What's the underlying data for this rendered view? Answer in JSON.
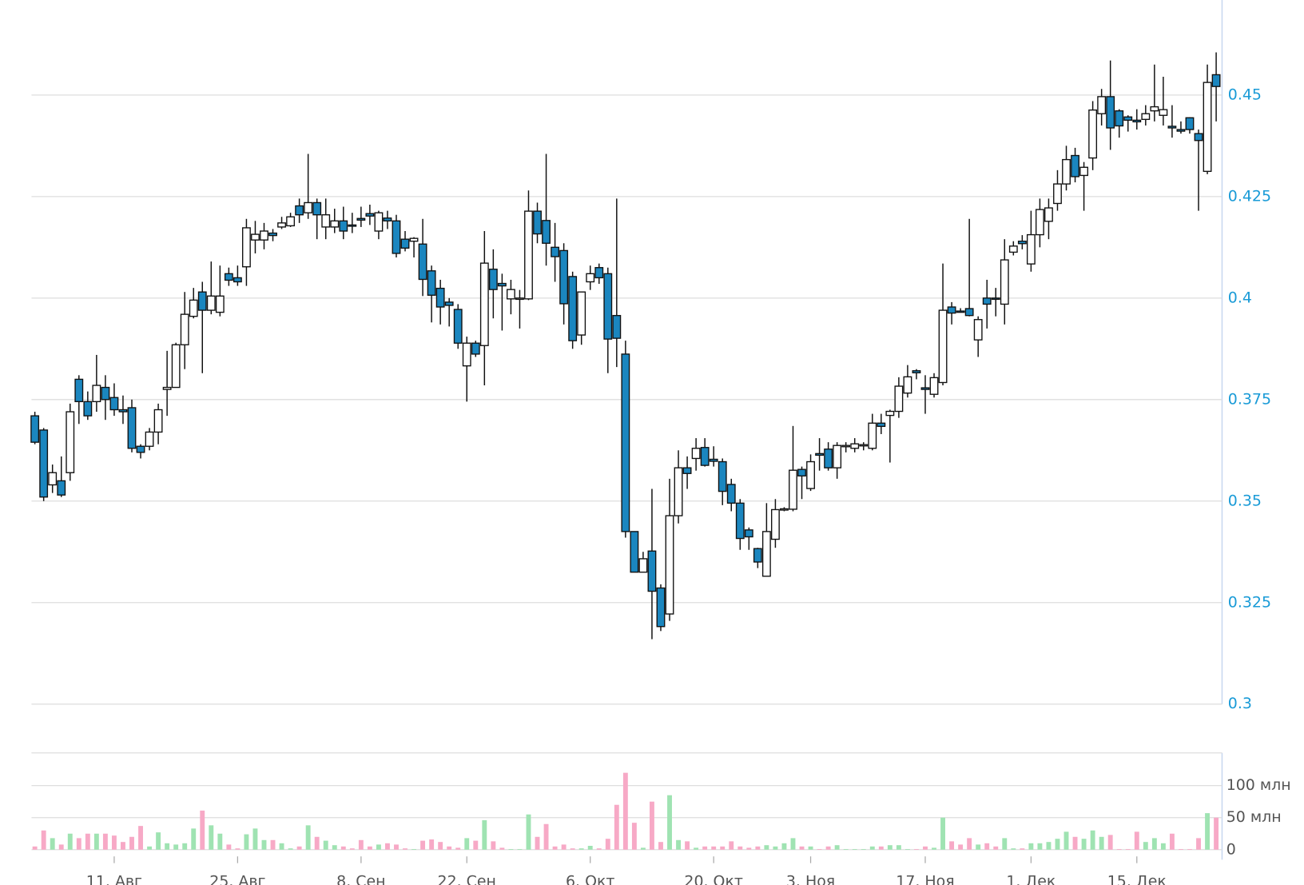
{
  "chart_data": [
    {
      "type": "candlestick",
      "categories": [
        null,
        null,
        null,
        null,
        null,
        null,
        null,
        null,
        null,
        "11. Авг",
        null,
        null,
        null,
        null,
        null,
        null,
        null,
        null,
        null,
        null,
        null,
        null,
        null,
        "25. Авг",
        null,
        null,
        null,
        null,
        null,
        null,
        null,
        null,
        null,
        null,
        null,
        null,
        null,
        "8. Сен",
        null,
        null,
        null,
        null,
        null,
        null,
        null,
        null,
        null,
        null,
        null,
        "22. Сен",
        null,
        null,
        null,
        null,
        null,
        null,
        null,
        null,
        null,
        null,
        null,
        null,
        null,
        "6. Окт",
        null,
        null,
        null,
        null,
        null,
        null,
        null,
        null,
        null,
        null,
        null,
        null,
        null,
        "20. Окт",
        null,
        null,
        null,
        null,
        null,
        null,
        null,
        null,
        null,
        null,
        "3. Ноя",
        null,
        null,
        null,
        null,
        null,
        null,
        null,
        null,
        null,
        null,
        null,
        null,
        "17. Ноя",
        null,
        null,
        null,
        null,
        null,
        null,
        null,
        null,
        null,
        null,
        null,
        "1. Дек",
        null,
        null,
        null,
        null,
        null,
        null,
        null,
        null,
        null,
        null,
        null,
        "15. Дек",
        null,
        null,
        null,
        null,
        null,
        null,
        null,
        null,
        null
      ],
      "open": [
        0.371,
        0.3675,
        0.354,
        0.355,
        0.357,
        0.38,
        0.3745,
        0.3745,
        0.378,
        0.3755,
        0.3725,
        0.373,
        0.3635,
        0.3635,
        0.367,
        0.3775,
        0.378,
        0.3885,
        0.3955,
        0.4015,
        0.397,
        0.3965,
        0.406,
        0.405,
        0.4077,
        0.4143,
        0.4143,
        0.416,
        0.4175,
        0.4178,
        0.4227,
        0.421,
        0.4235,
        0.4175,
        0.4175,
        0.419,
        0.418,
        0.4196,
        0.4208,
        0.4165,
        0.4197,
        0.419,
        0.4145,
        0.414,
        0.4133,
        0.4067,
        0.4024,
        0.399,
        0.3972,
        0.3833,
        0.3889,
        0.3883,
        0.4071,
        0.4036,
        0.3998,
        0.3998,
        0.3998,
        0.4214,
        0.4191,
        0.4125,
        0.4117,
        0.4053,
        0.3909,
        0.404,
        0.4075,
        0.406,
        0.3957,
        0.3862,
        0.3425,
        0.3325,
        0.3377,
        0.3286,
        0.3222,
        0.3464,
        0.3582,
        0.3605,
        0.3632,
        0.3603,
        0.3597,
        0.3541,
        0.3495,
        0.3429,
        0.3383,
        0.3315,
        0.3406,
        0.3479,
        0.348,
        0.3578,
        0.3531,
        0.3617,
        0.3628,
        0.3582,
        0.3636,
        0.363,
        0.3637,
        0.363,
        0.3692,
        0.3711,
        0.3721,
        0.3766,
        0.3821,
        0.3779,
        0.3763,
        0.3792,
        0.3978,
        0.3968,
        0.3974,
        0.3897,
        0.4,
        0.4,
        0.3985,
        0.4113,
        0.414,
        0.4084,
        0.4156,
        0.4189,
        0.4233,
        0.4281,
        0.4351,
        0.4302,
        0.4345,
        0.4454,
        0.4496,
        0.4461,
        0.4446,
        0.4438,
        0.444,
        0.4461,
        0.445,
        0.4423,
        0.4415,
        0.4444,
        0.4405,
        0.4312,
        0.455
      ],
      "high": [
        0.372,
        0.368,
        0.359,
        0.361,
        0.374,
        0.381,
        0.377,
        0.386,
        0.381,
        0.379,
        0.376,
        0.375,
        0.364,
        0.368,
        0.374,
        0.387,
        0.389,
        0.4015,
        0.4025,
        0.404,
        0.409,
        0.408,
        0.4075,
        0.408,
        0.4195,
        0.419,
        0.4185,
        0.417,
        0.42,
        0.421,
        0.4245,
        0.4355,
        0.4245,
        0.4245,
        0.422,
        0.4225,
        0.421,
        0.4225,
        0.423,
        0.4215,
        0.4215,
        0.4205,
        0.4165,
        0.415,
        0.4195,
        0.408,
        0.4045,
        0.4,
        0.3985,
        0.3905,
        0.3895,
        0.4165,
        0.412,
        0.406,
        0.4045,
        0.402,
        0.4265,
        0.4235,
        0.4355,
        0.4185,
        0.4135,
        0.4065,
        0.4015,
        0.408,
        0.4085,
        0.4075,
        0.4245,
        0.3895,
        0.3425,
        0.3375,
        0.353,
        0.3295,
        0.3555,
        0.3625,
        0.361,
        0.3655,
        0.3655,
        0.3635,
        0.3605,
        0.3555,
        0.3505,
        0.3435,
        0.3385,
        0.3495,
        0.3505,
        0.3485,
        0.3685,
        0.3585,
        0.3615,
        0.3655,
        0.3645,
        0.3645,
        0.3645,
        0.3655,
        0.3645,
        0.3715,
        0.3715,
        0.3725,
        0.3805,
        0.3835,
        0.3825,
        0.381,
        0.3815,
        0.4085,
        0.399,
        0.3975,
        0.4195,
        0.3955,
        0.4045,
        0.4025,
        0.4145,
        0.414,
        0.4155,
        0.4215,
        0.4245,
        0.4245,
        0.4315,
        0.4375,
        0.437,
        0.4335,
        0.4485,
        0.4515,
        0.4585,
        0.4465,
        0.445,
        0.4465,
        0.4475,
        0.4575,
        0.4545,
        0.4475,
        0.4435,
        0.4445,
        0.4415,
        0.4575,
        0.4605
      ],
      "low": [
        0.364,
        0.35,
        0.352,
        0.351,
        0.355,
        0.369,
        0.37,
        0.372,
        0.37,
        0.371,
        0.369,
        0.362,
        0.3605,
        0.3625,
        0.364,
        0.371,
        0.378,
        0.3825,
        0.395,
        0.3815,
        0.396,
        0.3955,
        0.403,
        0.403,
        0.403,
        0.411,
        0.412,
        0.414,
        0.417,
        0.4175,
        0.4185,
        0.4195,
        0.4145,
        0.4145,
        0.416,
        0.4145,
        0.416,
        0.4175,
        0.418,
        0.4145,
        0.417,
        0.41,
        0.4115,
        0.41,
        0.4005,
        0.394,
        0.3935,
        0.393,
        0.3875,
        0.3745,
        0.3855,
        0.3785,
        0.395,
        0.392,
        0.396,
        0.3925,
        0.3995,
        0.4135,
        0.408,
        0.404,
        0.3935,
        0.3875,
        0.3885,
        0.402,
        0.4035,
        0.3815,
        0.383,
        0.341,
        0.3325,
        0.3325,
        0.316,
        0.318,
        0.3205,
        0.3445,
        0.353,
        0.3575,
        0.3585,
        0.3585,
        0.349,
        0.3475,
        0.338,
        0.338,
        0.3335,
        0.3315,
        0.3385,
        0.3475,
        0.3475,
        0.3505,
        0.3525,
        0.3575,
        0.3575,
        0.3555,
        0.362,
        0.362,
        0.3625,
        0.3625,
        0.3665,
        0.3595,
        0.3705,
        0.3755,
        0.38,
        0.3715,
        0.3755,
        0.3785,
        0.3935,
        0.3965,
        0.3955,
        0.3855,
        0.3925,
        0.3955,
        0.3935,
        0.4105,
        0.412,
        0.4065,
        0.4125,
        0.4145,
        0.4215,
        0.4265,
        0.4285,
        0.4215,
        0.4315,
        0.4425,
        0.4365,
        0.4395,
        0.441,
        0.4415,
        0.4425,
        0.4435,
        0.4425,
        0.4395,
        0.4405,
        0.4405,
        0.4215,
        0.4305,
        0.4435
      ],
      "close": [
        0.3645,
        0.351,
        0.357,
        0.3515,
        0.372,
        0.3745,
        0.371,
        0.3785,
        0.375,
        0.3725,
        0.372,
        0.363,
        0.362,
        0.367,
        0.3725,
        0.378,
        0.3885,
        0.396,
        0.3995,
        0.397,
        0.4005,
        0.4005,
        0.4044,
        0.404,
        0.4173,
        0.4157,
        0.4165,
        0.4154,
        0.4185,
        0.42,
        0.4205,
        0.4235,
        0.4205,
        0.4205,
        0.419,
        0.4165,
        0.4178,
        0.4192,
        0.4202,
        0.421,
        0.419,
        0.411,
        0.4123,
        0.4147,
        0.4046,
        0.4007,
        0.3978,
        0.3982,
        0.3889,
        0.3889,
        0.3862,
        0.4086,
        0.4021,
        0.403,
        0.4021,
        0.4,
        0.4214,
        0.4158,
        0.4135,
        0.4102,
        0.3986,
        0.3895,
        0.4015,
        0.406,
        0.405,
        0.3899,
        0.3901,
        0.3425,
        0.3325,
        0.3358,
        0.3278,
        0.3191,
        0.3464,
        0.3582,
        0.3568,
        0.363,
        0.3588,
        0.3598,
        0.3524,
        0.3495,
        0.3408,
        0.3412,
        0.335,
        0.3425,
        0.3479,
        0.3481,
        0.3576,
        0.3562,
        0.3597,
        0.3613,
        0.3582,
        0.3637,
        0.3637,
        0.3641,
        0.3639,
        0.3692,
        0.3684,
        0.3721,
        0.3783,
        0.3806,
        0.3816,
        0.3775,
        0.3804,
        0.397,
        0.3963,
        0.3967,
        0.3957,
        0.3947,
        0.3985,
        0.3998,
        0.4094,
        0.4128,
        0.4134,
        0.4156,
        0.4218,
        0.4222,
        0.4281,
        0.4341,
        0.4299,
        0.4322,
        0.4463,
        0.4496,
        0.4419,
        0.4424,
        0.4438,
        0.4434,
        0.4454,
        0.4471,
        0.4464,
        0.4419,
        0.4411,
        0.4415,
        0.4388,
        0.4531,
        0.4521
      ],
      "up_color": "#ffffff",
      "down_color": "#1b86bf",
      "ylim": [
        0.3,
        0.4734
      ],
      "yticks": [
        0.3,
        0.325,
        0.35,
        0.375,
        0.4,
        0.425,
        0.45
      ],
      "grid": true
    },
    {
      "type": "bar",
      "values": [
        5000000,
        30000000,
        18000000,
        8000000,
        25000000,
        18000000,
        25000000,
        25000000,
        25000000,
        22000000,
        12000000,
        20000000,
        37000000,
        5000000,
        27000000,
        10000000,
        8000000,
        10000000,
        33000000,
        61000000,
        38000000,
        25000000,
        8000000,
        2000000,
        24000000,
        33000000,
        15000000,
        15000000,
        10000000,
        2000000,
        5000000,
        38000000,
        20000000,
        14000000,
        7000000,
        5000000,
        2000000,
        15000000,
        5000000,
        8000000,
        10000000,
        8000000,
        2000000,
        1000000,
        14000000,
        16000000,
        12000000,
        5000000,
        3000000,
        18000000,
        14000000,
        46000000,
        13000000,
        3000000,
        1000000,
        1000000,
        55000000,
        20000000,
        40000000,
        5000000,
        8000000,
        2000000,
        2000000,
        6000000,
        2000000,
        17000000,
        70000000,
        120000000,
        42000000,
        3000000,
        75000000,
        12000000,
        85000000,
        15000000,
        13000000,
        3000000,
        5000000,
        5000000,
        5000000,
        13000000,
        5000000,
        3000000,
        5000000,
        7000000,
        5000000,
        10000000,
        18000000,
        5000000,
        5000000,
        1000000,
        5000000,
        7000000,
        1000000,
        1000000,
        1000000,
        5000000,
        5000000,
        7000000,
        7000000,
        1000000,
        1000000,
        5000000,
        3000000,
        50000000,
        13000000,
        8000000,
        18000000,
        8000000,
        10000000,
        5000000,
        18000000,
        2000000,
        2000000,
        10000000,
        10000000,
        12000000,
        17000000,
        28000000,
        20000000,
        17000000,
        30000000,
        20000000,
        23000000,
        1000000,
        1000000,
        28000000,
        12000000,
        18000000,
        10000000,
        25000000,
        1000000,
        1000000,
        18000000,
        57000000,
        50000000
      ],
      "up_color": "#9fe3b2",
      "down_color": "#f7a9c6",
      "ylim": [
        0,
        151000000
      ],
      "yticks": [
        0,
        {
          "value": 50000000,
          "label": "50 млн"
        },
        {
          "value": 100000000,
          "label": "100 млн"
        }
      ],
      "grid": true
    }
  ]
}
